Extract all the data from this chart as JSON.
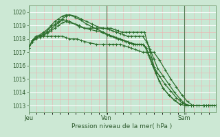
{
  "title": "Pression niveau de la mer( hPa )",
  "bg_color": "#cce8d4",
  "plot_bg_color": "#c8e8d4",
  "grid_color_major": "#ffffff",
  "grid_color_minor": "#f0b0b0",
  "line_color": "#2d6e2d",
  "text_color": "#2d5a2d",
  "ylim": [
    1012.5,
    1020.5
  ],
  "yticks": [
    1013,
    1014,
    1015,
    1016,
    1017,
    1018,
    1019,
    1020
  ],
  "day_labels": [
    "Jeu",
    "Ven",
    "Sam"
  ],
  "day_positions": [
    0.0,
    0.417,
    0.833
  ],
  "series": [
    {
      "x": [
        0.0,
        0.02,
        0.04,
        0.06,
        0.08,
        0.1,
        0.12,
        0.14,
        0.16,
        0.18,
        0.2,
        0.22,
        0.25,
        0.27,
        0.3,
        0.33,
        0.36,
        0.39,
        0.42,
        0.44,
        0.46,
        0.48,
        0.5,
        0.52,
        0.54,
        0.56,
        0.58,
        0.6,
        0.62,
        0.64,
        0.66,
        0.68,
        0.7,
        0.72,
        0.75,
        0.78,
        0.81,
        0.84,
        0.87,
        0.9,
        0.93,
        0.96,
        0.98,
        1.0
      ],
      "y": [
        1017.3,
        1017.8,
        1018.1,
        1018.2,
        1018.3,
        1018.4,
        1018.6,
        1018.8,
        1019.0,
        1019.2,
        1019.3,
        1019.2,
        1019.1,
        1018.9,
        1018.8,
        1018.8,
        1018.8,
        1018.8,
        1018.8,
        1018.8,
        1018.7,
        1018.6,
        1018.5,
        1018.5,
        1018.5,
        1018.5,
        1018.5,
        1018.5,
        1018.5,
        1017.5,
        1016.5,
        1015.5,
        1014.8,
        1014.3,
        1013.8,
        1013.4,
        1013.1,
        1013.0,
        1013.0,
        1013.0,
        1013.0,
        1013.0,
        1013.0,
        1013.0
      ]
    },
    {
      "x": [
        0.0,
        0.02,
        0.04,
        0.06,
        0.08,
        0.1,
        0.12,
        0.14,
        0.16,
        0.18,
        0.2,
        0.22,
        0.25,
        0.27,
        0.3,
        0.33,
        0.36,
        0.39,
        0.42,
        0.44,
        0.46,
        0.48,
        0.5,
        0.52,
        0.54,
        0.56,
        0.58,
        0.6,
        0.62,
        0.64,
        0.66,
        0.68,
        0.7,
        0.72,
        0.75,
        0.78,
        0.81,
        0.84,
        0.87,
        0.9,
        0.93,
        0.96,
        0.98,
        1.0
      ],
      "y": [
        1017.3,
        1017.8,
        1018.1,
        1018.2,
        1018.3,
        1018.5,
        1018.7,
        1019.0,
        1019.2,
        1019.4,
        1019.4,
        1019.3,
        1019.1,
        1019.0,
        1018.8,
        1018.7,
        1018.6,
        1018.5,
        1018.3,
        1018.2,
        1018.1,
        1018.0,
        1017.9,
        1017.8,
        1017.7,
        1017.6,
        1017.6,
        1017.6,
        1017.5,
        1016.8,
        1016.1,
        1015.4,
        1014.8,
        1014.3,
        1013.8,
        1013.4,
        1013.1,
        1013.0,
        1013.0,
        1013.0,
        1013.0,
        1013.0,
        1013.0,
        1013.0
      ]
    },
    {
      "x": [
        0.0,
        0.02,
        0.04,
        0.06,
        0.08,
        0.1,
        0.12,
        0.14,
        0.16,
        0.18,
        0.2,
        0.22,
        0.25,
        0.28,
        0.31,
        0.34,
        0.37,
        0.4,
        0.43,
        0.45,
        0.47,
        0.49,
        0.51,
        0.53,
        0.55,
        0.57,
        0.59,
        0.61,
        0.63,
        0.65,
        0.67,
        0.69,
        0.72,
        0.75,
        0.78,
        0.81,
        0.84,
        0.87,
        0.9,
        0.93,
        0.95,
        0.97,
        0.99,
        1.0
      ],
      "y": [
        1017.3,
        1017.9,
        1018.1,
        1018.2,
        1018.4,
        1018.6,
        1018.9,
        1019.1,
        1019.3,
        1019.5,
        1019.7,
        1019.8,
        1019.7,
        1019.5,
        1019.3,
        1019.1,
        1018.9,
        1018.8,
        1018.7,
        1018.6,
        1018.5,
        1018.4,
        1018.3,
        1018.2,
        1018.2,
        1018.2,
        1018.2,
        1018.2,
        1017.8,
        1017.2,
        1016.5,
        1015.8,
        1015.2,
        1014.6,
        1014.0,
        1013.5,
        1013.1,
        1013.0,
        1013.0,
        1013.0,
        1013.0,
        1013.0,
        1013.0,
        1013.0
      ]
    },
    {
      "x": [
        0.0,
        0.02,
        0.04,
        0.06,
        0.08,
        0.1,
        0.12,
        0.14,
        0.16,
        0.18,
        0.2,
        0.22,
        0.25,
        0.28,
        0.31,
        0.34,
        0.37,
        0.4,
        0.43,
        0.45,
        0.47,
        0.49,
        0.51,
        0.53,
        0.55,
        0.57,
        0.59,
        0.61,
        0.63,
        0.65,
        0.67,
        0.7,
        0.73,
        0.76,
        0.79,
        0.82,
        0.85,
        0.88,
        0.91,
        0.93,
        0.95,
        0.97,
        0.99,
        1.0
      ],
      "y": [
        1017.3,
        1017.9,
        1018.2,
        1018.3,
        1018.5,
        1018.7,
        1019.0,
        1019.3,
        1019.5,
        1019.7,
        1019.8,
        1019.8,
        1019.6,
        1019.4,
        1019.1,
        1018.9,
        1018.7,
        1018.5,
        1018.3,
        1018.2,
        1018.1,
        1018.0,
        1017.9,
        1017.8,
        1017.7,
        1017.6,
        1017.6,
        1017.6,
        1017.3,
        1016.6,
        1015.9,
        1015.2,
        1014.6,
        1014.1,
        1013.6,
        1013.2,
        1013.0,
        1013.0,
        1013.0,
        1013.0,
        1013.0,
        1013.0,
        1013.0,
        1013.0
      ]
    },
    {
      "x": [
        0.0,
        0.02,
        0.04,
        0.06,
        0.08,
        0.1,
        0.12,
        0.14,
        0.16,
        0.18,
        0.2,
        0.22,
        0.24,
        0.26,
        0.28,
        0.3,
        0.33,
        0.36,
        0.4,
        0.43,
        0.45,
        0.47,
        0.49,
        0.51,
        0.53,
        0.55,
        0.57,
        0.59,
        0.61,
        0.63,
        0.65,
        0.67,
        0.7,
        0.73,
        0.76,
        0.79,
        0.82,
        0.85,
        0.88,
        0.91,
        0.94,
        0.96,
        0.98,
        1.0
      ],
      "y": [
        1017.3,
        1017.8,
        1018.0,
        1018.1,
        1018.2,
        1018.2,
        1018.2,
        1018.2,
        1018.2,
        1018.2,
        1018.1,
        1018.0,
        1018.0,
        1018.0,
        1017.9,
        1017.8,
        1017.7,
        1017.6,
        1017.6,
        1017.6,
        1017.6,
        1017.6,
        1017.6,
        1017.5,
        1017.4,
        1017.3,
        1017.2,
        1017.1,
        1017.0,
        1017.0,
        1017.0,
        1017.0,
        1016.4,
        1015.7,
        1015.0,
        1014.4,
        1013.8,
        1013.3,
        1013.0,
        1013.0,
        1013.0,
        1013.0,
        1013.0,
        1013.0
      ]
    }
  ],
  "vline_color": "#507850",
  "linewidth": 0.9,
  "marker_size": 3.0
}
